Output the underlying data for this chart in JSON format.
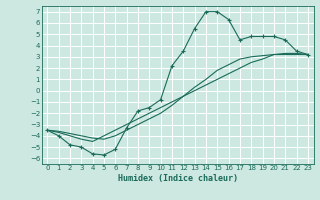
{
  "xlabel": "Humidex (Indice chaleur)",
  "xlim": [
    -0.5,
    23.5
  ],
  "ylim": [
    -6.5,
    7.5
  ],
  "xticks": [
    0,
    1,
    2,
    3,
    4,
    5,
    6,
    7,
    8,
    9,
    10,
    11,
    12,
    13,
    14,
    15,
    16,
    17,
    18,
    19,
    20,
    21,
    22,
    23
  ],
  "yticks": [
    -6,
    -5,
    -4,
    -3,
    -2,
    -1,
    0,
    1,
    2,
    3,
    4,
    5,
    6,
    7
  ],
  "bg_color": "#cce8e0",
  "line_color": "#1a6b5a",
  "grid_color": "#ffffff",
  "line1_x": [
    0,
    1,
    2,
    3,
    4,
    5,
    6,
    7,
    8,
    9,
    10,
    11,
    12,
    13,
    14,
    15,
    16,
    17,
    18,
    19,
    20,
    21,
    22,
    23
  ],
  "line1_y": [
    -3.5,
    -4.0,
    -4.8,
    -5.0,
    -5.6,
    -5.7,
    -5.2,
    -3.3,
    -1.8,
    -1.5,
    -0.8,
    2.2,
    3.5,
    5.5,
    7.0,
    7.0,
    6.3,
    4.5,
    4.8,
    4.8,
    4.8,
    4.5,
    3.5,
    3.2
  ],
  "line2_x": [
    0,
    1,
    2,
    3,
    4,
    5,
    6,
    7,
    8,
    9,
    10,
    11,
    12,
    13,
    14,
    15,
    16,
    17,
    18,
    19,
    20,
    21,
    22,
    23
  ],
  "line2_y": [
    -3.5,
    -3.7,
    -4.0,
    -4.3,
    -4.5,
    -4.0,
    -3.5,
    -3.0,
    -2.5,
    -2.0,
    -1.5,
    -1.0,
    -0.5,
    0.0,
    0.5,
    1.0,
    1.5,
    2.0,
    2.5,
    2.8,
    3.2,
    3.3,
    3.3,
    3.2
  ],
  "line3_x": [
    0,
    1,
    2,
    3,
    4,
    5,
    6,
    7,
    8,
    9,
    10,
    11,
    12,
    13,
    14,
    15,
    16,
    17,
    18,
    19,
    20,
    21,
    22,
    23
  ],
  "line3_y": [
    -3.5,
    -3.6,
    -3.8,
    -4.0,
    -4.2,
    -4.3,
    -4.0,
    -3.5,
    -3.0,
    -2.5,
    -2.0,
    -1.3,
    -0.5,
    0.3,
    1.0,
    1.8,
    2.3,
    2.8,
    3.0,
    3.1,
    3.2,
    3.2,
    3.2,
    3.2
  ],
  "xlabel_fontsize": 6,
  "tick_fontsize": 5
}
